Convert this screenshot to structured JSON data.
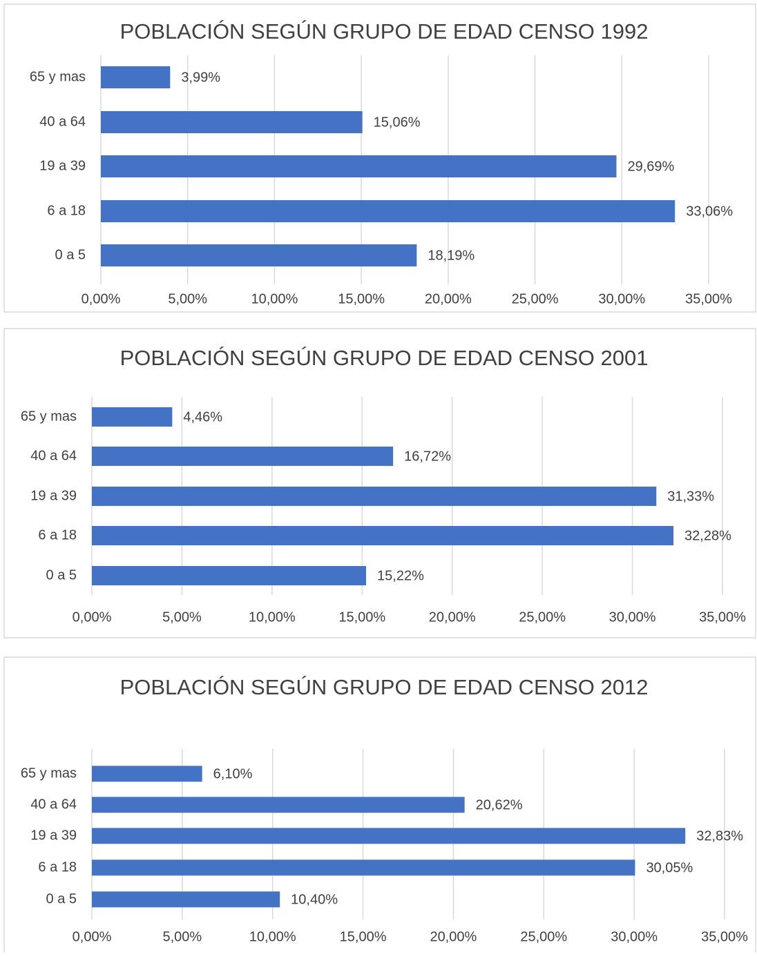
{
  "chart_data": [
    {
      "type": "bar",
      "orientation": "horizontal",
      "title": "POBLACIÓN SEGÚN GRUPO DE EDAD CENSO 1992",
      "categories": [
        "65 y mas",
        "40 a 64",
        "19 a 39",
        "6 a 18",
        "0 a 5"
      ],
      "values": [
        3.99,
        15.06,
        29.69,
        33.06,
        18.19
      ],
      "value_labels": [
        "3,99%",
        "15,06%",
        "29,69%",
        "33,06%",
        "18,19%"
      ],
      "color": "#4472c4",
      "grid": true,
      "xlim": [
        0,
        35
      ],
      "xticks": [
        {
          "value": 0,
          "label": "0,00%"
        },
        {
          "value": 5,
          "label": "5,00%"
        },
        {
          "value": 10,
          "label": "10,00%"
        },
        {
          "value": 15,
          "label": "15,00%"
        },
        {
          "value": 20,
          "label": "20,00%"
        },
        {
          "value": 25,
          "label": "25,00%"
        },
        {
          "value": 30,
          "label": "30,00%"
        },
        {
          "value": 35,
          "label": "35,00%"
        }
      ]
    },
    {
      "type": "bar",
      "orientation": "horizontal",
      "title": "POBLACIÓN SEGÚN GRUPO DE EDAD CENSO  2001",
      "categories": [
        "65 y mas",
        "40 a 64",
        "19 a 39",
        "6 a 18",
        "0 a 5"
      ],
      "values": [
        4.46,
        16.72,
        31.33,
        32.28,
        15.22
      ],
      "value_labels": [
        "4,46%",
        "16,72%",
        "31,33%",
        "32,28%",
        "15,22%"
      ],
      "color": "#4472c4",
      "grid": true,
      "xlim": [
        0,
        35
      ],
      "xticks": [
        {
          "value": 0,
          "label": "0,00%"
        },
        {
          "value": 5,
          "label": "5,00%"
        },
        {
          "value": 10,
          "label": "10,00%"
        },
        {
          "value": 15,
          "label": "15,00%"
        },
        {
          "value": 20,
          "label": "20,00%"
        },
        {
          "value": 25,
          "label": "25,00%"
        },
        {
          "value": 30,
          "label": "30,00%"
        },
        {
          "value": 35,
          "label": "35,00%"
        }
      ]
    },
    {
      "type": "bar",
      "orientation": "horizontal",
      "title": "POBLACIÓN SEGÚN GRUPO DE EDAD CENSO 2012",
      "categories": [
        "65 y mas",
        "40 a 64",
        "19 a 39",
        "6 a 18",
        "0 a 5"
      ],
      "values": [
        6.1,
        20.62,
        32.83,
        30.05,
        10.4
      ],
      "value_labels": [
        "6,10%",
        "20,62%",
        "32,83%",
        "30,05%",
        "10,40%"
      ],
      "color": "#4472c4",
      "grid": true,
      "xlim": [
        0,
        35
      ],
      "xticks": [
        {
          "value": 0,
          "label": "0,00%"
        },
        {
          "value": 5,
          "label": "5,00%"
        },
        {
          "value": 10,
          "label": "10,00%"
        },
        {
          "value": 15,
          "label": "15,00%"
        },
        {
          "value": 20,
          "label": "20,00%"
        },
        {
          "value": 25,
          "label": "25,00%"
        },
        {
          "value": 30,
          "label": "30,00%"
        },
        {
          "value": 35,
          "label": "35,00%"
        }
      ]
    }
  ]
}
